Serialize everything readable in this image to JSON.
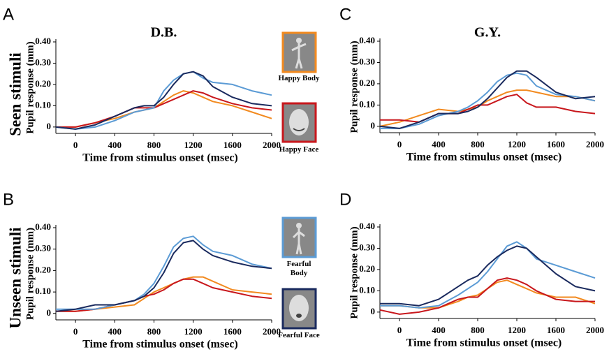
{
  "row_labels": [
    "Seen stimuli",
    "Unseen stimuli"
  ],
  "chart_data": [
    {
      "type": "line",
      "panel": "A",
      "title": "D.B.",
      "ylabel": "Pupil response (mm)",
      "xlabel": "Time from stimulus onset (msec)",
      "xlim": [
        -200,
        2000
      ],
      "ylim": [
        -0.03,
        0.4
      ],
      "xticks": [
        0,
        400,
        800,
        1200,
        1600,
        2000
      ],
      "yticks": [
        0,
        {
          "value": 0.1,
          "label": "0.10"
        },
        {
          "value": 0.2,
          "label": "0.20"
        },
        {
          "value": 0.3,
          "label": "0.30"
        },
        {
          "value": 0.4,
          "label": "0.40"
        }
      ],
      "x": [
        -200,
        0,
        200,
        400,
        600,
        700,
        800,
        900,
        1000,
        1100,
        1200,
        1300,
        1400,
        1600,
        1800,
        2000
      ],
      "series": [
        {
          "name": "Happy Body",
          "color": "#f28a1f",
          "values": [
            0,
            0,
            0.02,
            0.04,
            0.07,
            0.08,
            0.09,
            0.12,
            0.15,
            0.17,
            0.16,
            0.14,
            0.12,
            0.1,
            0.07,
            0.04
          ]
        },
        {
          "name": "Happy Face",
          "color": "#c8171c",
          "values": [
            0,
            0,
            0.02,
            0.05,
            0.09,
            0.09,
            0.09,
            0.11,
            0.13,
            0.15,
            0.17,
            0.16,
            0.14,
            0.11,
            0.09,
            0.08
          ]
        },
        {
          "name": "Fearful Body",
          "color": "#5b9bd5",
          "values": [
            0,
            -0.01,
            0,
            0.03,
            0.07,
            0.08,
            0.09,
            0.17,
            0.22,
            0.25,
            0.26,
            0.23,
            0.21,
            0.2,
            0.17,
            0.15
          ]
        },
        {
          "name": "Fearful Face",
          "color": "#1a2a5e",
          "values": [
            0,
            -0.01,
            0.01,
            0.05,
            0.09,
            0.1,
            0.1,
            0.14,
            0.2,
            0.25,
            0.26,
            0.24,
            0.19,
            0.14,
            0.11,
            0.1
          ]
        }
      ]
    },
    {
      "type": "line",
      "panel": "B",
      "ylabel": "Pupil response (mm)",
      "xlabel": "Time from stimulus onset (msec)",
      "xlim": [
        -200,
        2000
      ],
      "ylim": [
        -0.03,
        0.4
      ],
      "xticks": [
        0,
        400,
        800,
        1200,
        1600,
        2000
      ],
      "yticks": [
        0,
        {
          "value": 0.1,
          "label": "0.10"
        },
        {
          "value": 0.2,
          "label": "0.20"
        },
        {
          "value": 0.3,
          "label": "0.30"
        },
        {
          "value": 0.4,
          "label": "0.40"
        }
      ],
      "x": [
        -200,
        0,
        200,
        400,
        600,
        700,
        800,
        900,
        1000,
        1100,
        1200,
        1300,
        1400,
        1600,
        1800,
        2000
      ],
      "series": [
        {
          "name": "Happy Body",
          "color": "#f28a1f",
          "values": [
            0.01,
            0.01,
            0.02,
            0.03,
            0.04,
            0.07,
            0.1,
            0.12,
            0.14,
            0.16,
            0.17,
            0.17,
            0.15,
            0.11,
            0.1,
            0.09
          ]
        },
        {
          "name": "Happy Face",
          "color": "#c8171c",
          "values": [
            0.01,
            0.01,
            0.02,
            0.04,
            0.06,
            0.08,
            0.09,
            0.11,
            0.14,
            0.16,
            0.16,
            0.14,
            0.12,
            0.1,
            0.08,
            0.07
          ]
        },
        {
          "name": "Fearful Body",
          "color": "#5b9bd5",
          "values": [
            0.02,
            0.02,
            0.02,
            0.04,
            0.06,
            0.09,
            0.14,
            0.22,
            0.31,
            0.35,
            0.36,
            0.32,
            0.29,
            0.27,
            0.23,
            0.21
          ]
        },
        {
          "name": "Fearful Face",
          "color": "#1a2a5e",
          "values": [
            0.01,
            0.02,
            0.04,
            0.04,
            0.06,
            0.08,
            0.12,
            0.19,
            0.28,
            0.33,
            0.34,
            0.3,
            0.27,
            0.24,
            0.22,
            0.21
          ]
        }
      ]
    },
    {
      "type": "line",
      "panel": "C",
      "title": "G.Y.",
      "ylabel": "Pupil response (mm)",
      "xlabel": "Time from stimulus onset (msec)",
      "xlim": [
        -200,
        2000
      ],
      "ylim": [
        -0.03,
        0.4
      ],
      "xticks": [
        0,
        400,
        800,
        1200,
        1600,
        2000
      ],
      "yticks": [
        0,
        {
          "value": 0.1,
          "label": "0.10"
        },
        {
          "value": 0.2,
          "label": "0.20"
        },
        {
          "value": 0.3,
          "label": "0.30"
        },
        {
          "value": 0.4,
          "label": "0.40"
        }
      ],
      "x": [
        -200,
        0,
        200,
        400,
        600,
        700,
        800,
        900,
        1000,
        1100,
        1200,
        1300,
        1400,
        1600,
        1800,
        2000
      ],
      "series": [
        {
          "name": "Happy Body",
          "color": "#f28a1f",
          "values": [
            0,
            0.02,
            0.05,
            0.08,
            0.07,
            0.08,
            0.09,
            0.12,
            0.14,
            0.16,
            0.17,
            0.17,
            0.16,
            0.14,
            0.14,
            0.12
          ]
        },
        {
          "name": "Happy Face",
          "color": "#c8171c",
          "values": [
            0.03,
            0.03,
            0.02,
            0.06,
            0.06,
            0.08,
            0.1,
            0.1,
            0.12,
            0.14,
            0.15,
            0.11,
            0.09,
            0.09,
            0.07,
            0.06
          ]
        },
        {
          "name": "Fearful Body",
          "color": "#5b9bd5",
          "values": [
            -0.01,
            -0.01,
            0.01,
            0.05,
            0.07,
            0.09,
            0.12,
            0.16,
            0.21,
            0.24,
            0.25,
            0.24,
            0.19,
            0.15,
            0.14,
            0.12
          ]
        },
        {
          "name": "Fearful Face",
          "color": "#1a2a5e",
          "values": [
            0,
            -0.01,
            0.02,
            0.06,
            0.06,
            0.07,
            0.09,
            0.13,
            0.18,
            0.23,
            0.26,
            0.26,
            0.23,
            0.16,
            0.13,
            0.14
          ]
        }
      ]
    },
    {
      "type": "line",
      "panel": "D",
      "ylabel": "Pupil response (mm)",
      "xlabel": "Time from stimulus onset (msec)",
      "xlim": [
        -200,
        2000
      ],
      "ylim": [
        -0.03,
        0.4
      ],
      "xticks": [
        0,
        400,
        800,
        1200,
        1600,
        2000
      ],
      "yticks": [
        0,
        {
          "value": 0.1,
          "label": "0.10"
        },
        {
          "value": 0.2,
          "label": "0.20"
        },
        {
          "value": 0.3,
          "label": "0.30"
        },
        {
          "value": 0.4,
          "label": "0.40"
        }
      ],
      "x": [
        -200,
        0,
        200,
        400,
        600,
        700,
        800,
        900,
        1000,
        1100,
        1200,
        1300,
        1400,
        1600,
        1800,
        2000
      ],
      "series": [
        {
          "name": "Happy Body",
          "color": "#f28a1f",
          "values": [
            0.03,
            0.03,
            0.02,
            0.02,
            0.05,
            0.07,
            0.08,
            0.11,
            0.14,
            0.15,
            0.13,
            0.11,
            0.09,
            0.07,
            0.07,
            0.04
          ]
        },
        {
          "name": "Happy Face",
          "color": "#c8171c",
          "values": [
            0.01,
            -0.01,
            0,
            0.02,
            0.06,
            0.07,
            0.07,
            0.11,
            0.15,
            0.16,
            0.15,
            0.13,
            0.1,
            0.06,
            0.05,
            0.05
          ]
        },
        {
          "name": "Fearful Body",
          "color": "#5b9bd5",
          "values": [
            0.03,
            0.03,
            0.02,
            0.03,
            0.08,
            0.11,
            0.14,
            0.19,
            0.25,
            0.31,
            0.33,
            0.3,
            0.25,
            0.22,
            0.19,
            0.16
          ]
        },
        {
          "name": "Fearful Face",
          "color": "#1a2a5e",
          "values": [
            0.04,
            0.04,
            0.03,
            0.06,
            0.12,
            0.15,
            0.17,
            0.22,
            0.26,
            0.29,
            0.31,
            0.3,
            0.26,
            0.18,
            0.12,
            0.1
          ]
        }
      ]
    }
  ]
}
